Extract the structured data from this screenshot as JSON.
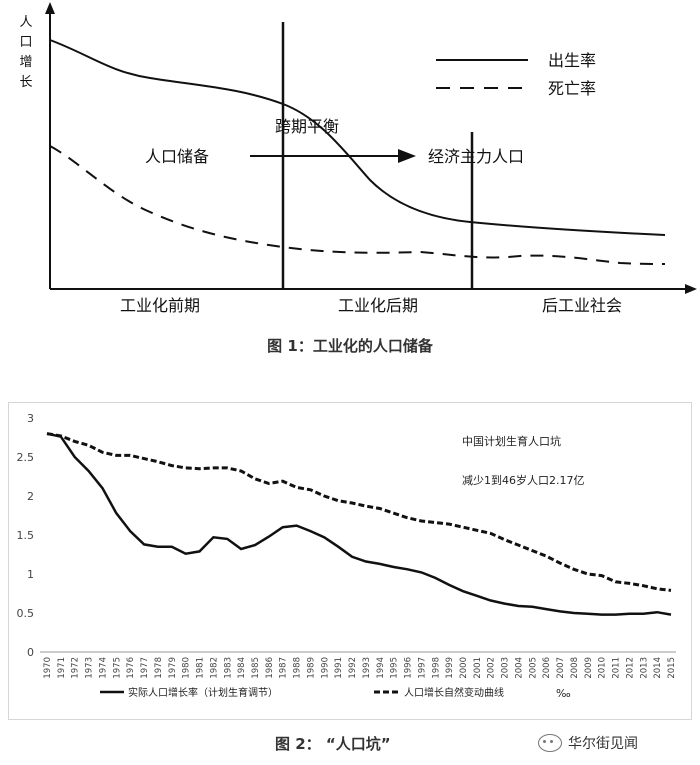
{
  "figure1": {
    "caption": "图 1：工业化的人口储备",
    "ylabel": "人口增长",
    "legend": [
      {
        "label": "出生率",
        "style": "solid"
      },
      {
        "label": "死亡率",
        "style": "dashed"
      }
    ],
    "phases": [
      "工业化前期",
      "工业化后期",
      "后工业社会"
    ],
    "annotations": {
      "cross": "跨期平衡",
      "reserve": "人口储备",
      "main_force": "经济主力人口"
    }
  },
  "figure2": {
    "caption": "图 2：  “人口坑”",
    "note_title": "中国计划生育人口坑",
    "note_detail": "减少1到46岁人口2.17亿",
    "unit": "‰"
  },
  "watermark": {
    "text": "华尔街见闻",
    "icon": "wechat-icon"
  },
  "chart_data": [
    {
      "type": "line",
      "title": "",
      "ylabel": "人口增长",
      "x_categories": [
        "工业化前期",
        "工业化后期",
        "后工业社会"
      ],
      "series": [
        {
          "name": "出生率",
          "style": "solid",
          "shape": "high-then-declining"
        },
        {
          "name": "死亡率",
          "style": "dashed",
          "shape": "declining-then-flat"
        }
      ],
      "legend_position": "top-right",
      "grid": false
    },
    {
      "type": "line",
      "title": "",
      "xlabel": "",
      "ylabel": "",
      "x": [
        1970,
        1971,
        1972,
        1973,
        1974,
        1975,
        1976,
        1977,
        1978,
        1979,
        1980,
        1981,
        1982,
        1983,
        1984,
        1985,
        1986,
        1987,
        1988,
        1989,
        1990,
        1991,
        1992,
        1993,
        1994,
        1995,
        1996,
        1997,
        1998,
        1999,
        2000,
        2001,
        2002,
        2003,
        2004,
        2005,
        2006,
        2007,
        2008,
        2009,
        2010,
        2011,
        2012,
        2013,
        2014,
        2015
      ],
      "ylim": [
        0,
        3
      ],
      "yticks": [
        0,
        0.5,
        1,
        1.5,
        2,
        2.5,
        3
      ],
      "legend_position": "bottom",
      "grid": false,
      "series": [
        {
          "name": "实际人口增长率（计划生育调节）",
          "style": "solid",
          "values": [
            2.8,
            2.76,
            2.5,
            2.32,
            2.1,
            1.78,
            1.55,
            1.38,
            1.35,
            1.35,
            1.26,
            1.29,
            1.47,
            1.45,
            1.32,
            1.37,
            1.48,
            1.6,
            1.62,
            1.55,
            1.47,
            1.35,
            1.22,
            1.16,
            1.13,
            1.09,
            1.06,
            1.02,
            0.95,
            0.86,
            0.78,
            0.72,
            0.66,
            0.62,
            0.59,
            0.58,
            0.55,
            0.52,
            0.5,
            0.49,
            0.48,
            0.48,
            0.49,
            0.49,
            0.51,
            0.48
          ]
        },
        {
          "name": "人口增长自然变动曲线",
          "style": "dashed",
          "values": [
            2.8,
            2.77,
            2.7,
            2.65,
            2.56,
            2.52,
            2.52,
            2.48,
            2.44,
            2.39,
            2.36,
            2.35,
            2.36,
            2.36,
            2.32,
            2.22,
            2.16,
            2.19,
            2.11,
            2.08,
            2.0,
            1.94,
            1.91,
            1.87,
            1.84,
            1.78,
            1.72,
            1.68,
            1.66,
            1.64,
            1.6,
            1.56,
            1.52,
            1.44,
            1.37,
            1.3,
            1.23,
            1.14,
            1.06,
            1.0,
            0.98,
            0.9,
            0.88,
            0.85,
            0.81,
            0.79
          ]
        }
      ]
    }
  ]
}
